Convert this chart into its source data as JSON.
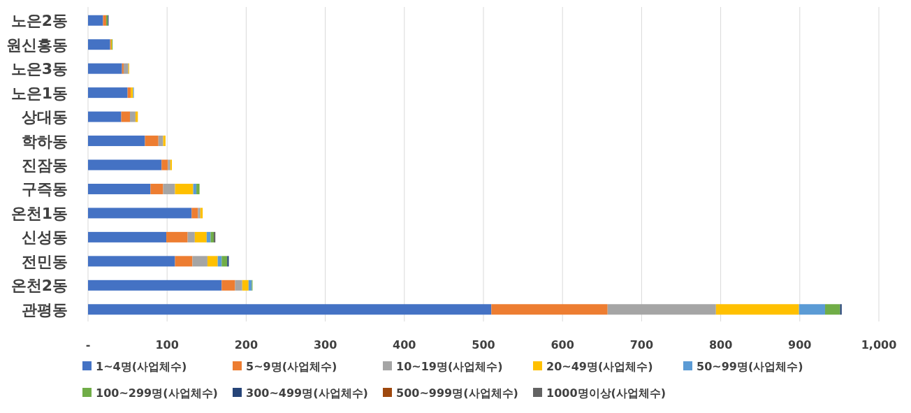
{
  "chart_data": {
    "type": "bar",
    "orientation": "horizontal",
    "stacked": true,
    "grid": "x",
    "legend": "bottom",
    "categories": [
      "노은2동",
      "원신흥동",
      "노은3동",
      "노은1동",
      "상대동",
      "학하동",
      "진잠동",
      "구즉동",
      "온천1동",
      "신성동",
      "전민동",
      "온천2동",
      "관평동"
    ],
    "xlim": [
      0,
      1000
    ],
    "xticks": [
      {
        "value": 0,
        "label": "-"
      },
      100,
      200,
      300,
      400,
      500,
      600,
      700,
      800,
      900,
      {
        "value": 1000,
        "label": "1,000"
      }
    ],
    "series": [
      {
        "name": "1~4명(사업체수)",
        "color": "#4472c4",
        "values": [
          19,
          28,
          43,
          50,
          42,
          72,
          93,
          79,
          131,
          99,
          110,
          169,
          510
        ]
      },
      {
        "name": "5~9명(사업체수)",
        "color": "#ed7d31",
        "values": [
          4,
          1,
          2,
          4,
          11,
          17,
          8,
          16,
          8,
          27,
          22,
          17,
          147
        ]
      },
      {
        "name": "10~19명(사업체수)",
        "color": "#a5a5a5",
        "values": [
          null,
          null,
          6,
          null,
          7,
          6,
          3,
          15,
          3,
          9,
          19,
          9,
          137
        ]
      },
      {
        "name": "20~49명(사업체수)",
        "color": "#ffc000",
        "values": [
          null,
          1,
          1,
          3,
          3,
          3,
          2,
          23,
          3,
          15,
          13,
          8,
          105
        ]
      },
      {
        "name": "50~99명(사업체수)",
        "color": "#5b9bd5",
        "values": [
          null,
          null,
          null,
          1,
          null,
          null,
          null,
          4,
          null,
          5,
          5,
          4,
          33
        ]
      },
      {
        "name": "100~299명(사업체수)",
        "color": "#70ad47",
        "values": [
          2,
          1,
          null,
          null,
          null,
          null,
          null,
          4,
          null,
          4,
          7,
          1,
          19
        ]
      },
      {
        "name": "300~499명(사업체수)",
        "color": "#264478",
        "values": [
          1,
          null,
          null,
          null,
          null,
          null,
          null,
          null,
          null,
          null,
          2,
          null,
          2
        ]
      },
      {
        "name": "500~999명(사업체수)",
        "color": "#9e480e",
        "values": [
          null,
          null,
          null,
          null,
          null,
          null,
          null,
          null,
          null,
          null,
          null,
          null,
          null
        ]
      },
      {
        "name": "1000명이상(사업체수)",
        "color": "#636363",
        "values": [
          null,
          null,
          null,
          null,
          null,
          null,
          null,
          null,
          null,
          2,
          null,
          null,
          null
        ]
      }
    ]
  }
}
